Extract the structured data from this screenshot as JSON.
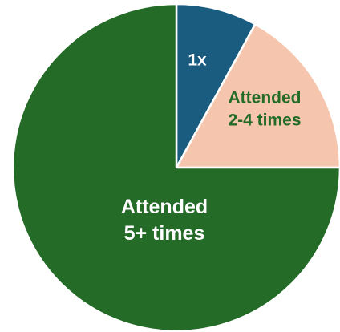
{
  "chart_data": {
    "type": "pie",
    "title": "",
    "start_angle_deg": 0,
    "direction": "clockwise",
    "slices": [
      {
        "label_lines": [
          "1x"
        ],
        "value": 8,
        "color": "#1a5b80",
        "label_color": "#ffffff"
      },
      {
        "label_lines": [
          "Attended",
          "2-4 times"
        ],
        "value": 17,
        "color": "#f5c6ad",
        "label_color": "#236b26"
      },
      {
        "label_lines": [
          "Attended",
          "5+ times"
        ],
        "value": 75,
        "color": "#236b26",
        "label_color": "#ffffff"
      }
    ],
    "slice_border_color": "#ffffff"
  }
}
